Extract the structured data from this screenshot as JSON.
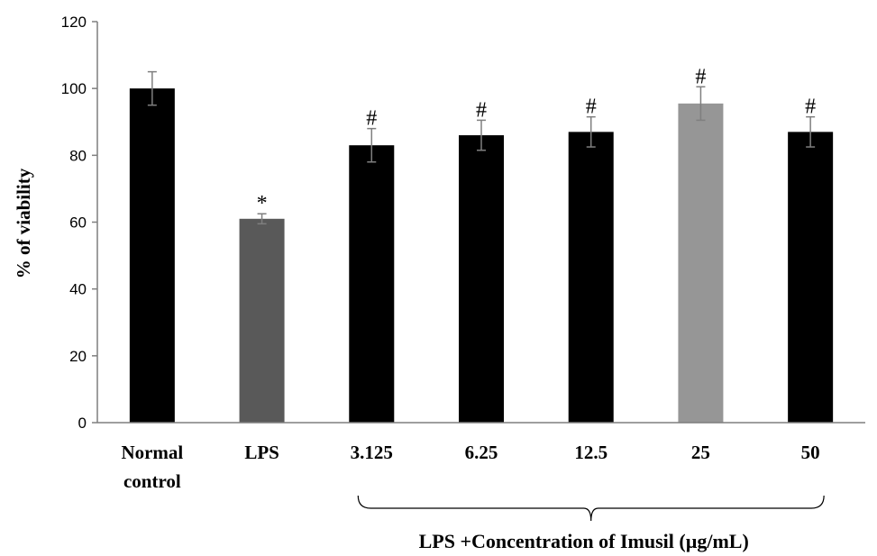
{
  "chart_data": {
    "type": "bar",
    "categories": [
      [
        "Normal",
        "control"
      ],
      [
        "LPS"
      ],
      [
        "3.125"
      ],
      [
        "6.25"
      ],
      [
        "12.5"
      ],
      [
        "25"
      ],
      [
        "50"
      ]
    ],
    "values": [
      100,
      61,
      83,
      86,
      87,
      95.5,
      87
    ],
    "errors": [
      5,
      1.5,
      5,
      4.5,
      4.5,
      5,
      4.5
    ],
    "significance": [
      "",
      "*",
      "#",
      "#",
      "#",
      "#",
      "#"
    ],
    "bar_colors": [
      "#000000",
      "#595959",
      "#000000",
      "#000000",
      "#000000",
      "#969696",
      "#000000"
    ],
    "ylabel": "% of viability",
    "xlabel": "",
    "ylim": [
      0,
      120
    ],
    "yticks": [
      0,
      20,
      40,
      60,
      80,
      100,
      120
    ],
    "group_label": "LPS +Concentration of Imusil (µg/mL)",
    "grid": false,
    "legend": "none"
  }
}
